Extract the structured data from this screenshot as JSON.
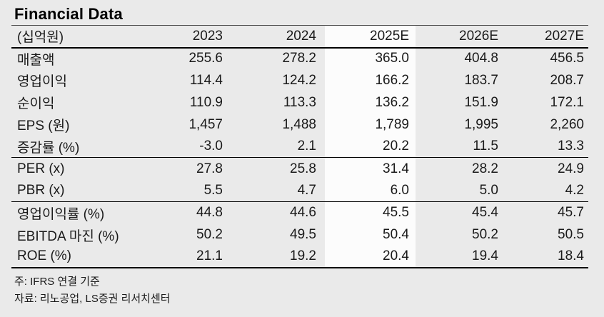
{
  "title": "Financial Data",
  "colors": {
    "page_bg": "#eaeaea",
    "highlight_column_bg": "#fcfcfc",
    "text": "#1a1a1a",
    "rule": "#000000"
  },
  "table": {
    "unit_label": "(십억원)",
    "columns": [
      "2023",
      "2024",
      "2025E",
      "2026E",
      "2027E"
    ],
    "highlight_column": "2025E",
    "highlight_index": 2,
    "rows": [
      {
        "label": "매출액",
        "section": 1,
        "values": [
          "255.6",
          "278.2",
          "365.0",
          "404.8",
          "456.5"
        ]
      },
      {
        "label": "영업이익",
        "section": 1,
        "values": [
          "114.4",
          "124.2",
          "166.2",
          "183.7",
          "208.7"
        ]
      },
      {
        "label": "순이익",
        "section": 1,
        "values": [
          "110.9",
          "113.3",
          "136.2",
          "151.9",
          "172.1"
        ]
      },
      {
        "label": "EPS (원)",
        "section": 1,
        "values": [
          "1,457",
          "1,488",
          "1,789",
          "1,995",
          "2,260"
        ]
      },
      {
        "label": "증감률 (%)",
        "section": 1,
        "values": [
          "-3.0",
          "2.1",
          "20.2",
          "11.5",
          "13.3"
        ]
      },
      {
        "label": "PER (x)",
        "section": 2,
        "values": [
          "27.8",
          "25.8",
          "31.4",
          "28.2",
          "24.9"
        ]
      },
      {
        "label": "PBR (x)",
        "section": 2,
        "values": [
          "5.5",
          "4.7",
          "6.0",
          "5.0",
          "4.2"
        ]
      },
      {
        "label": "영업이익률 (%)",
        "section": 3,
        "values": [
          "44.8",
          "44.6",
          "45.5",
          "45.4",
          "45.7"
        ]
      },
      {
        "label": "EBITDA 마진 (%)",
        "section": 3,
        "values": [
          "50.2",
          "49.5",
          "50.4",
          "50.2",
          "50.5"
        ]
      },
      {
        "label": "ROE (%)",
        "section": 3,
        "values": [
          "21.1",
          "19.2",
          "20.4",
          "19.4",
          "18.4"
        ]
      }
    ]
  },
  "notes": [
    "주: IFRS 연결 기준",
    "자료: 리노공업, LS증권 리서치센터"
  ]
}
